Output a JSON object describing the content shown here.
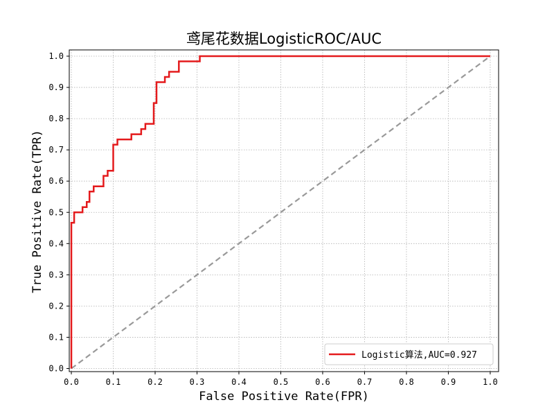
{
  "chart_data": {
    "type": "line",
    "title": "鸢尾花数据LogisticROC/AUC",
    "xlabel": "False Positive Rate(FPR)",
    "ylabel": "True Positive Rate(TPR)",
    "xlim": [
      -0.005,
      1.02
    ],
    "ylim": [
      -0.01,
      1.02
    ],
    "xticks": [
      "0.0",
      "0.1",
      "0.2",
      "0.3",
      "0.4",
      "0.5",
      "0.6",
      "0.7",
      "0.8",
      "0.9",
      "1.0"
    ],
    "yticks": [
      "0.0",
      "0.1",
      "0.2",
      "0.3",
      "0.4",
      "0.5",
      "0.6",
      "0.7",
      "0.8",
      "0.9",
      "1.0"
    ],
    "grid": true,
    "legend_position": "lower-right",
    "series": [
      {
        "name": "Logistic算法,AUC=0.927",
        "color": "#e41a1c",
        "x": [
          0.0,
          0.0,
          0.0067,
          0.0067,
          0.0267,
          0.0267,
          0.0367,
          0.0367,
          0.0433,
          0.0433,
          0.0533,
          0.0533,
          0.0767,
          0.0767,
          0.0867,
          0.0867,
          0.1,
          0.1,
          0.11,
          0.11,
          0.1433,
          0.1433,
          0.1667,
          0.1667,
          0.1767,
          0.1767,
          0.1967,
          0.1967,
          0.2033,
          0.2033,
          0.2233,
          0.2233,
          0.2333,
          0.2333,
          0.2567,
          0.2567,
          0.3067,
          0.3067,
          1.0
        ],
        "y": [
          0.0,
          0.4667,
          0.4667,
          0.5,
          0.5,
          0.5167,
          0.5167,
          0.5333,
          0.5333,
          0.5667,
          0.5667,
          0.5833,
          0.5833,
          0.6167,
          0.6167,
          0.6333,
          0.6333,
          0.7167,
          0.7167,
          0.7333,
          0.7333,
          0.75,
          0.75,
          0.7667,
          0.7667,
          0.7833,
          0.7833,
          0.85,
          0.85,
          0.9167,
          0.9167,
          0.9333,
          0.9333,
          0.95,
          0.95,
          0.9833,
          0.9833,
          1.0,
          1.0
        ]
      },
      {
        "name": "",
        "style": "dashed",
        "color": "#999999",
        "x": [
          0,
          1
        ],
        "y": [
          0,
          1
        ]
      }
    ]
  }
}
